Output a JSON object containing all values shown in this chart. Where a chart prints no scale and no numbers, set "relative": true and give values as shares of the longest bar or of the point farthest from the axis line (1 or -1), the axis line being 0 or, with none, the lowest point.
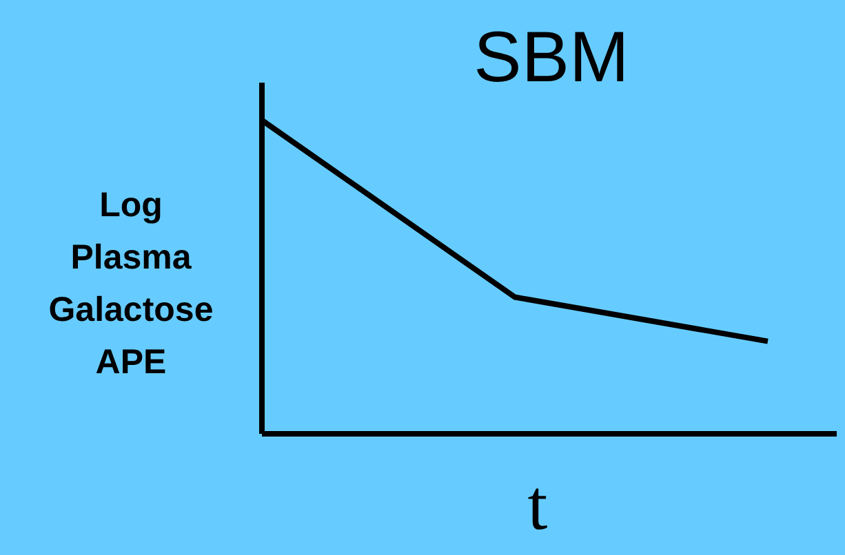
{
  "chart_data": {
    "type": "line",
    "title": "SBM",
    "xlabel": "t",
    "ylabel": "Log Plasma Galactose APE",
    "relative": true,
    "categories": [
      null,
      null,
      null
    ],
    "series": [
      {
        "color": "#000000",
        "values": [
          1,
          0.436,
          0.295
        ]
      }
    ],
    "marker": "none",
    "line_style": "solid"
  }
}
